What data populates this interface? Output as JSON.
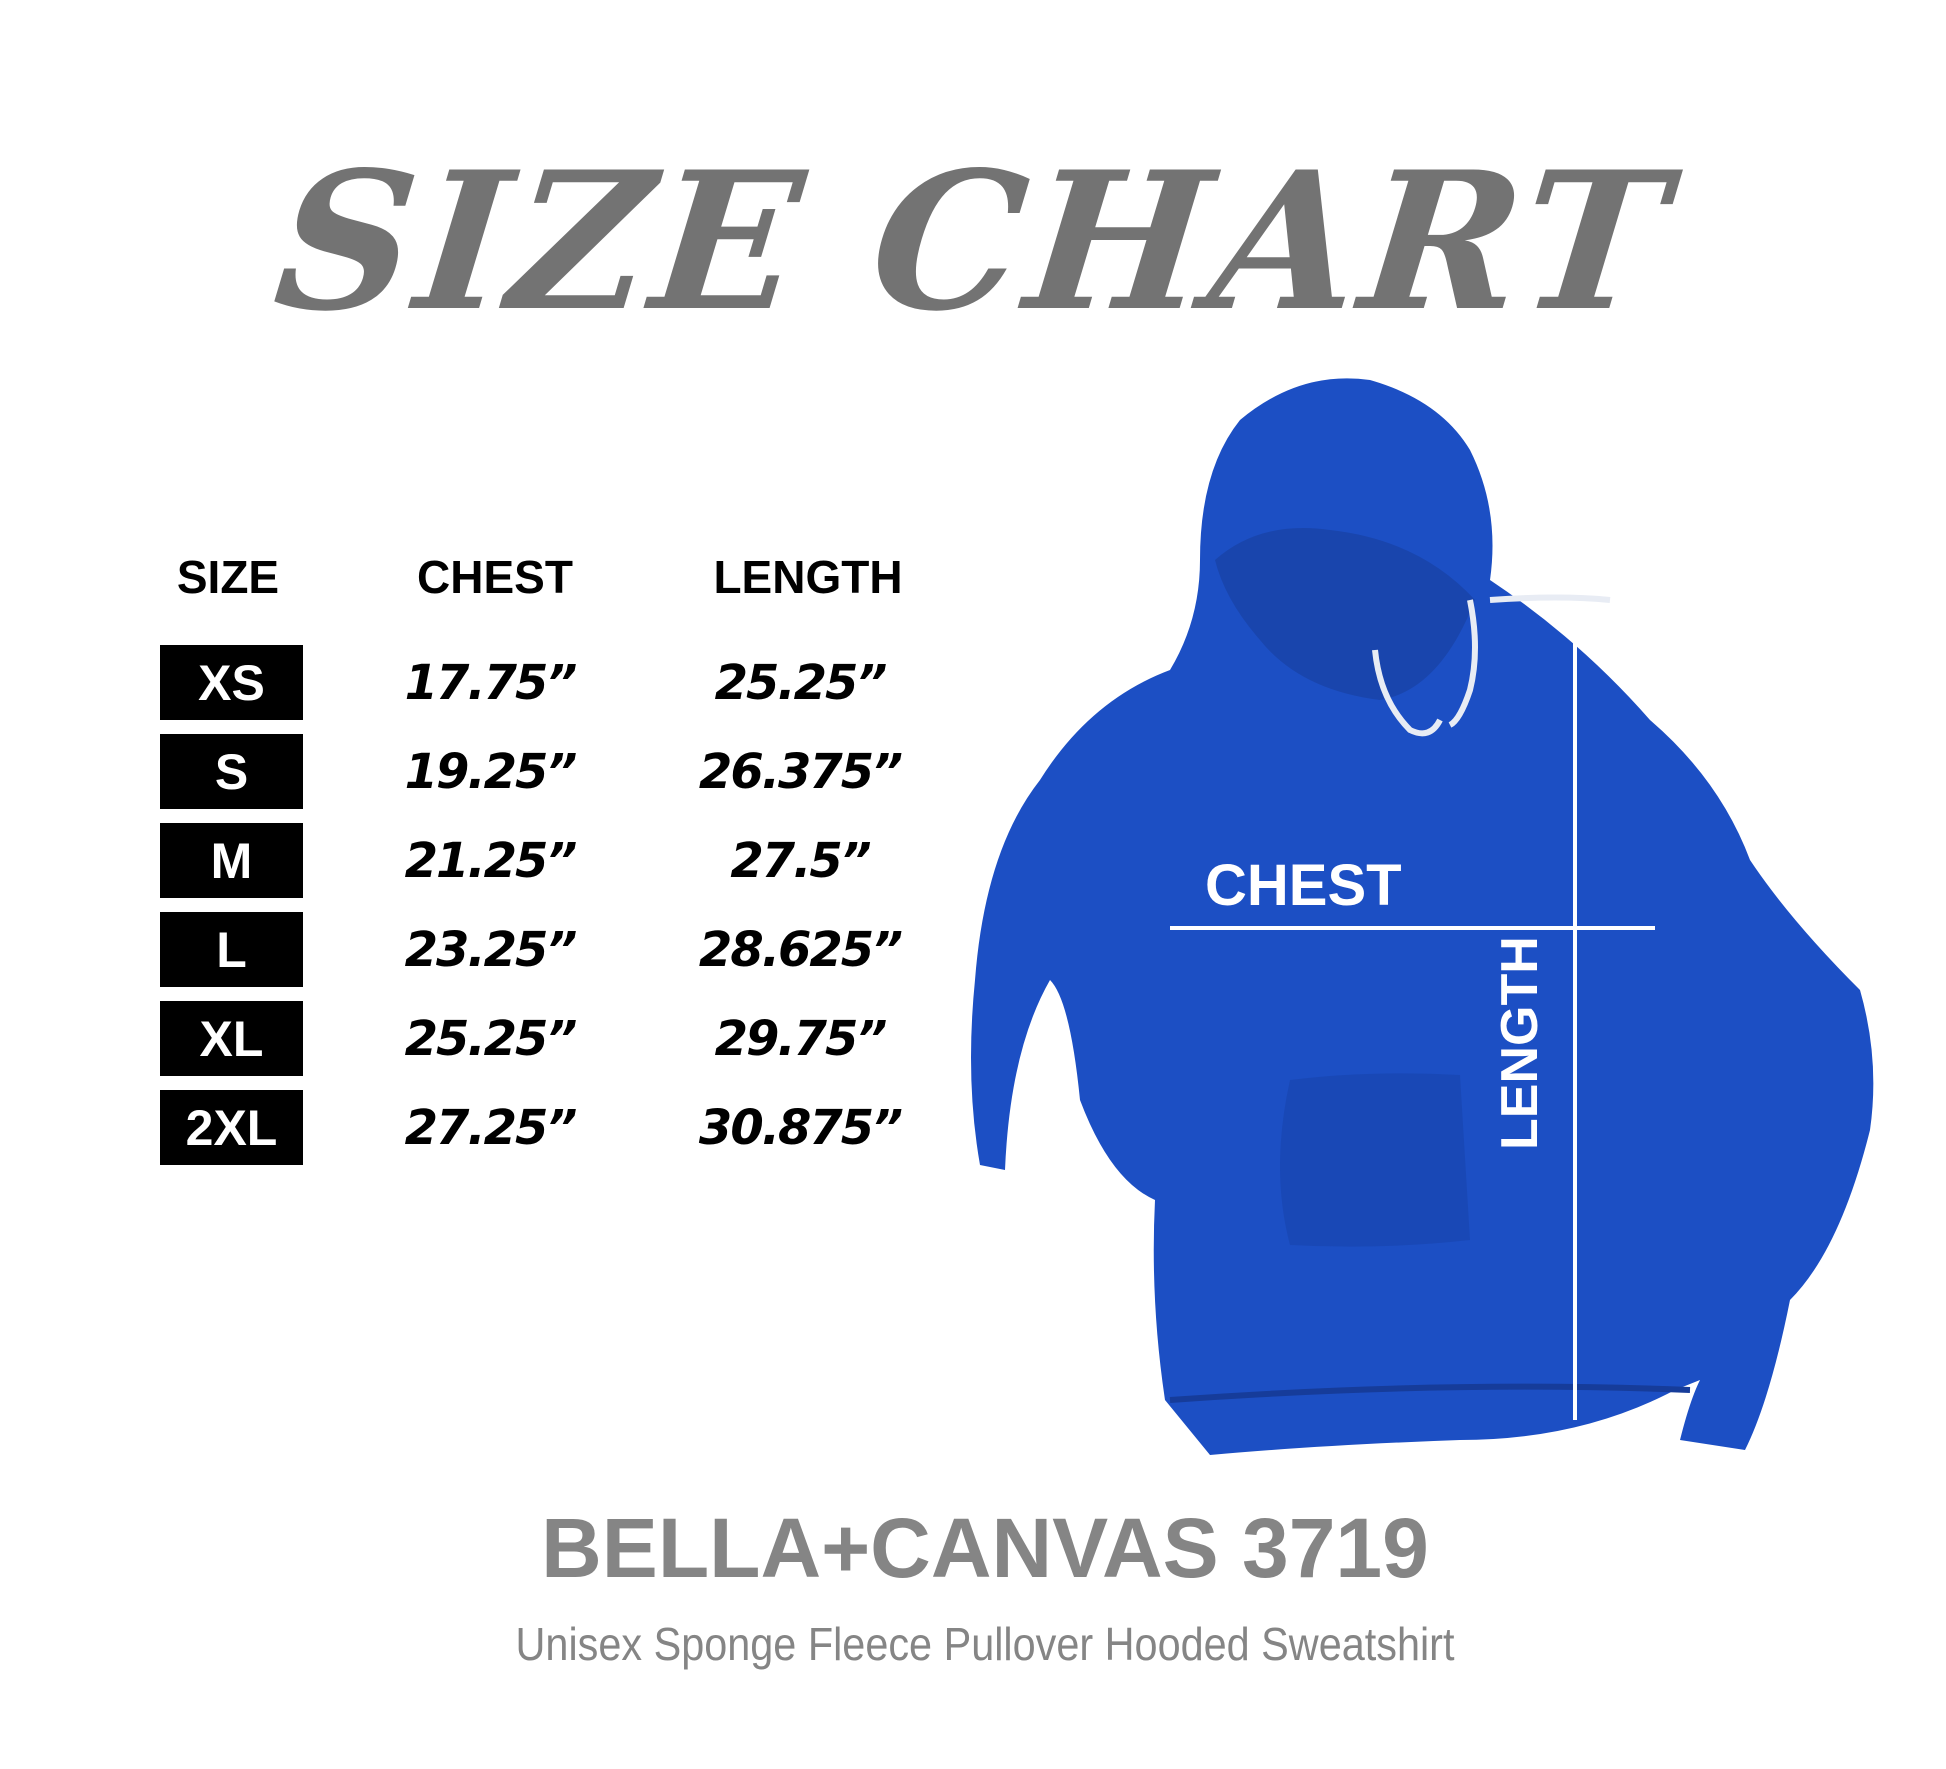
{
  "title": "SIZE CHART",
  "table": {
    "headers": {
      "size": "SIZE",
      "chest": "CHEST",
      "length": "LENGTH"
    },
    "rows": [
      {
        "size": "XS",
        "chest": "17.75”",
        "length": "25.25”"
      },
      {
        "size": "S",
        "chest": "19.25”",
        "length": "26.375”"
      },
      {
        "size": "M",
        "chest": "21.25”",
        "length": "27.5”"
      },
      {
        "size": "L",
        "chest": "23.25”",
        "length": "28.625”"
      },
      {
        "size": "XL",
        "chest": "25.25”",
        "length": "29.75”"
      },
      {
        "size": "2XL",
        "chest": "27.25”",
        "length": "30.875”"
      }
    ]
  },
  "garment": {
    "chest_label": "CHEST",
    "length_label": "LENGTH",
    "color": "#1c4fc4"
  },
  "brand": "BELLA+CANVAS 3719",
  "description": "Unisex Sponge Fleece Pullover Hooded Sweatshirt"
}
